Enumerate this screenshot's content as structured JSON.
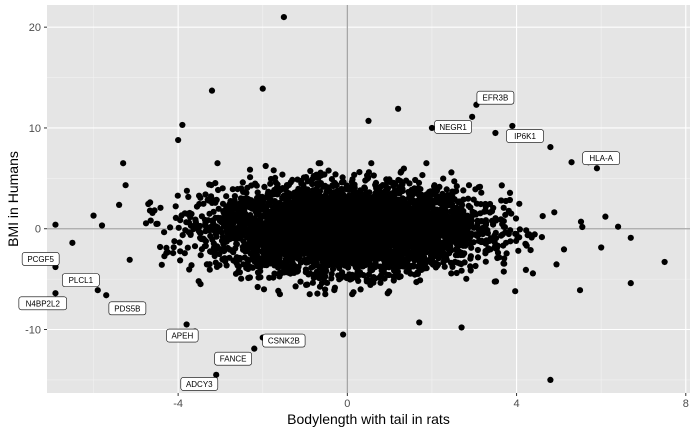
{
  "chart_data": {
    "type": "scatter",
    "title": "",
    "xlabel": "Bodylength with tail in rats",
    "ylabel": "BMI in Humans",
    "xlim": [
      -7.1,
      8.1
    ],
    "ylim": [
      -16.3,
      22.2
    ],
    "x_ticks": [
      -4,
      0,
      4,
      8
    ],
    "y_ticks": [
      -10,
      0,
      10,
      20
    ],
    "x_tick_labels": [
      "-4",
      "0",
      "4",
      "8"
    ],
    "y_tick_labels": [
      "-10",
      "0",
      "10",
      "20"
    ],
    "grid": true,
    "reference_lines": {
      "x": 0,
      "y": 0
    },
    "colors": {
      "panel": "#e5e5e5",
      "grid_major": "#ffffff",
      "point": "#000000",
      "reference_line": "#a6a6a6"
    },
    "cloud": {
      "n": 5200,
      "x_sd": 1.55,
      "y_sd": 2.05,
      "x_span": [
        -5.8,
        6.0
      ],
      "y_span": [
        -6.5,
        6.5
      ]
    },
    "outliers": [
      {
        "x": -1.5,
        "y": 21.0
      },
      {
        "x": -3.2,
        "y": 13.7
      },
      {
        "x": -2.0,
        "y": 13.9
      },
      {
        "x": 1.2,
        "y": 11.9
      },
      {
        "x": 0.5,
        "y": 10.7
      },
      {
        "x": 2.0,
        "y": 10.0
      },
      {
        "x": -3.9,
        "y": 10.3
      },
      {
        "x": 3.5,
        "y": 9.5
      },
      {
        "x": -4.0,
        "y": 8.8
      },
      {
        "x": 4.8,
        "y": 8.1
      },
      {
        "x": 5.3,
        "y": 6.6
      },
      {
        "x": 5.9,
        "y": 6.0
      },
      {
        "x": -5.3,
        "y": 6.5
      },
      {
        "x": 6.1,
        "y": 1.2
      },
      {
        "x": 6.4,
        "y": 0.2
      },
      {
        "x": 6.7,
        "y": -0.9
      },
      {
        "x": 7.5,
        "y": -3.3
      },
      {
        "x": 6.7,
        "y": -5.4
      },
      {
        "x": 5.5,
        "y": -6.1
      },
      {
        "x": 4.8,
        "y": -15.0
      },
      {
        "x": -0.1,
        "y": -10.5
      },
      {
        "x": 1.7,
        "y": -9.3
      },
      {
        "x": 2.7,
        "y": -9.8
      },
      {
        "x": -3.8,
        "y": -9.5
      },
      {
        "x": -6.0,
        "y": 1.3
      },
      {
        "x": -6.9,
        "y": 0.4
      },
      {
        "x": -6.5,
        "y": -1.4
      }
    ],
    "labeled_points": [
      {
        "label": "EFR3B",
        "x": 3.05,
        "y": 12.3,
        "lx": 3.5,
        "ly": 13.0
      },
      {
        "label": "NEGR1",
        "x": 2.95,
        "y": 11.1,
        "lx": 2.5,
        "ly": 10.1
      },
      {
        "label": "IP6K1",
        "x": 3.9,
        "y": 10.2,
        "lx": 4.2,
        "ly": 9.2
      },
      {
        "label": "HLA-A",
        "x": 5.7,
        "y": 6.6,
        "lx": 6.0,
        "ly": 7.0
      },
      {
        "label": "PCGF5",
        "x": -6.9,
        "y": -3.8,
        "lx": -7.25,
        "ly": -3.0
      },
      {
        "label": "PLCL1",
        "x": -5.9,
        "y": -6.1,
        "lx": -6.3,
        "ly": -5.1
      },
      {
        "label": "N4BP2L2",
        "x": -6.9,
        "y": -6.4,
        "lx": -7.2,
        "ly": -7.4
      },
      {
        "label": "PDS5B",
        "x": -5.7,
        "y": -6.6,
        "lx": -5.2,
        "ly": -7.9
      },
      {
        "label": "APEH",
        "x": -3.6,
        "y": -10.2,
        "lx": -3.9,
        "ly": -10.6
      },
      {
        "label": "CSNK2B",
        "x": -2.0,
        "y": -10.8,
        "lx": -1.5,
        "ly": -11.1
      },
      {
        "label": "FANCE",
        "x": -2.2,
        "y": -11.9,
        "lx": -2.7,
        "ly": -12.9
      },
      {
        "label": "ADCY3",
        "x": -3.1,
        "y": -14.5,
        "lx": -3.5,
        "ly": -15.4
      }
    ]
  }
}
